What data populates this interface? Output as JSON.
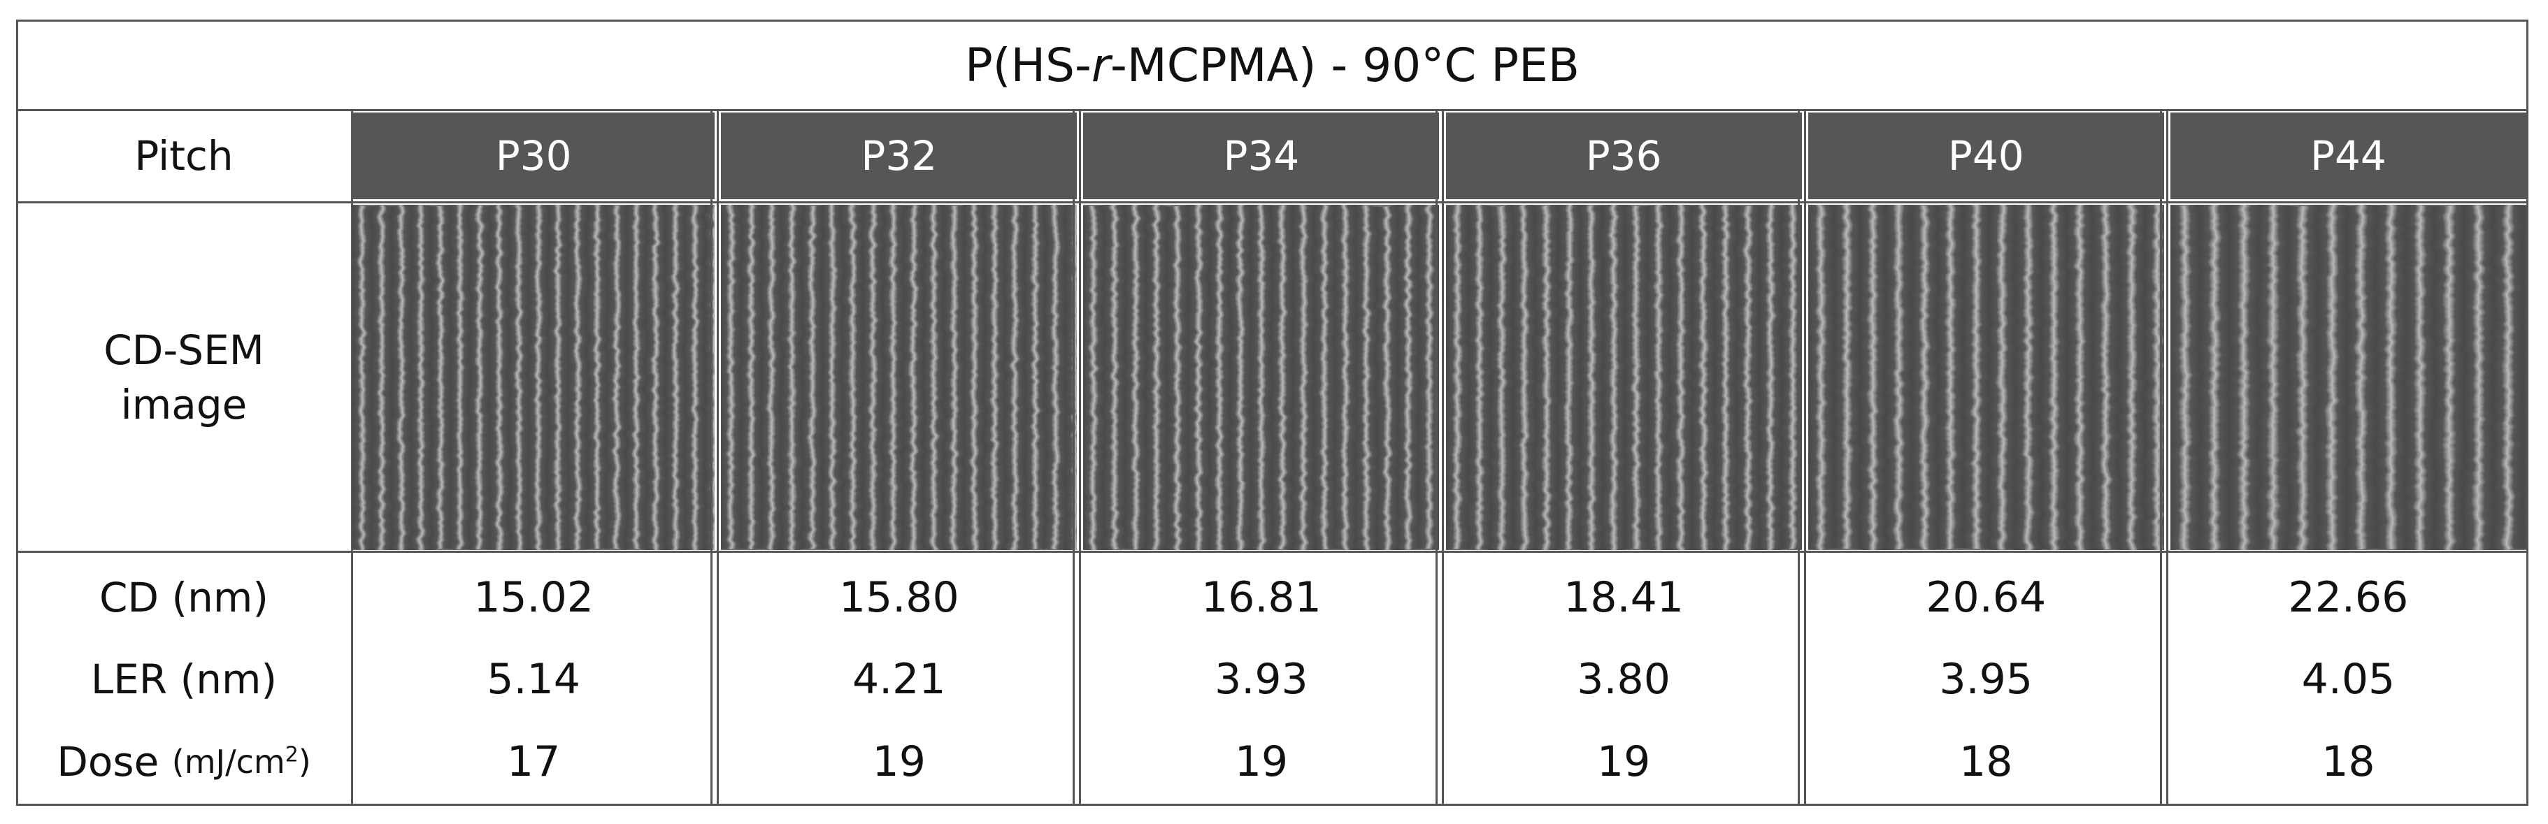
{
  "table": {
    "title_parts": [
      "P(HS-",
      "r",
      "-MCPMA) - 90°C PEB"
    ],
    "row_labels": {
      "pitch": "Pitch",
      "image": "CD-SEM image",
      "cd": "CD (nm)",
      "ler": "LER (nm)",
      "dose": "Dose",
      "dose_unit": [
        "(mJ/cm",
        "2",
        ")"
      ]
    },
    "columns": [
      {
        "pitch": "P30",
        "cd": "15.02",
        "ler": "5.14",
        "dose": "17"
      },
      {
        "pitch": "P32",
        "cd": "15.80",
        "ler": "4.21",
        "dose": "19"
      },
      {
        "pitch": "P34",
        "cd": "16.81",
        "ler": "3.93",
        "dose": "19"
      },
      {
        "pitch": "P36",
        "cd": "18.41",
        "ler": "3.80",
        "dose": "19"
      },
      {
        "pitch": "P40",
        "cd": "20.64",
        "ler": "3.95",
        "dose": "18"
      },
      {
        "pitch": "P44",
        "cd": "22.66",
        "ler": "4.05",
        "dose": "18"
      }
    ]
  }
}
